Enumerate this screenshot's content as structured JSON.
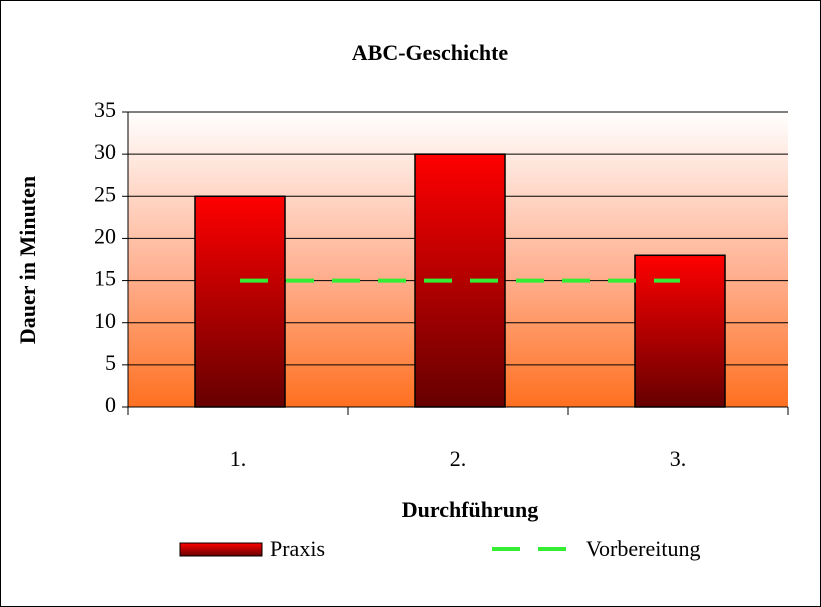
{
  "chart_data": {
    "type": "bar",
    "title": "ABC-Geschichte",
    "x_label": "Durchführung",
    "y_label": "Dauer in Minuten",
    "categories": [
      "1.",
      "2.",
      "3."
    ],
    "series": [
      {
        "name": "Praxis",
        "type": "bar",
        "color": "#ff0000",
        "values": [
          25,
          30,
          18
        ]
      },
      {
        "name": "Vorbereitung",
        "type": "line",
        "color": "#33ee33",
        "values": [
          15,
          15,
          15
        ]
      }
    ],
    "ylim": [
      0,
      35
    ],
    "yticks": [
      0,
      5,
      10,
      15,
      20,
      25,
      30,
      35
    ],
    "grid": true,
    "legend": "bottom"
  }
}
